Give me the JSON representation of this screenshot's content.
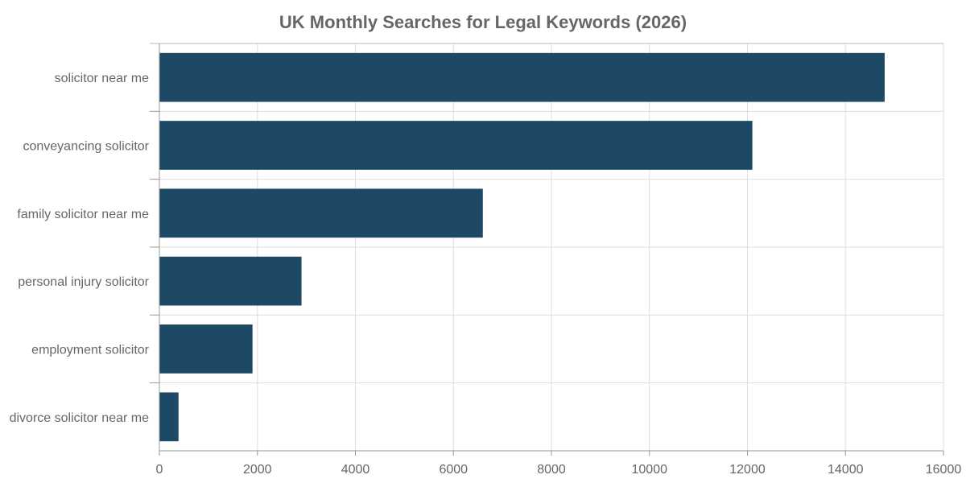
{
  "chart_data": {
    "type": "bar",
    "orientation": "horizontal",
    "title": "UK Monthly Searches for Legal Keywords (2026)",
    "xlabel": "",
    "ylabel": "",
    "categories": [
      "solicitor near me",
      "conveyancing solicitor",
      "family solicitor near me",
      "personal injury solicitor",
      "employment solicitor",
      "divorce solicitor near me"
    ],
    "values": [
      14800,
      12100,
      6600,
      2900,
      1900,
      390
    ],
    "xlim": [
      0,
      16000
    ],
    "xticks": [
      "0",
      "2000",
      "4000",
      "6000",
      "8000",
      "10000",
      "12000",
      "14000",
      "16000"
    ],
    "grid": true,
    "legend": "none",
    "colors": {
      "bar": "#1d4866",
      "grid": "#dddddd",
      "axis": "#999999",
      "text": "#666666"
    }
  }
}
